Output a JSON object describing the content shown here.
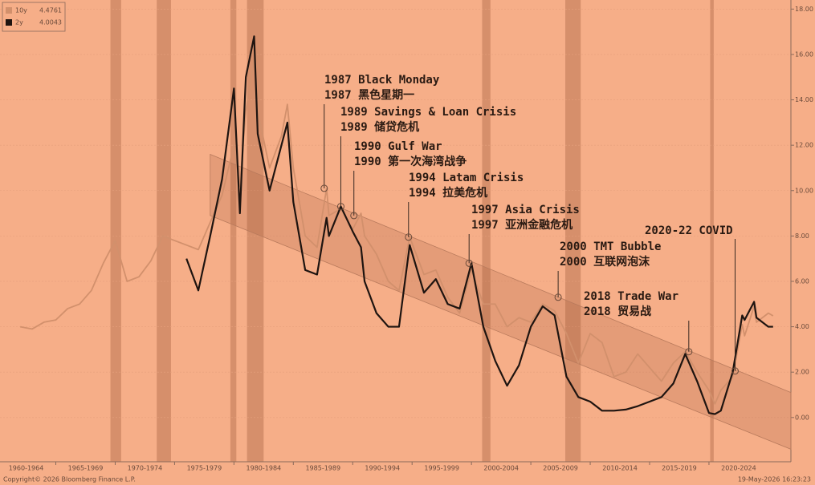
{
  "chart_data": {
    "type": "line",
    "x": [
      1962,
      1963,
      1964,
      1965,
      1966,
      1967,
      1968,
      1969,
      1970,
      1971,
      1972,
      1973,
      1974,
      1975,
      1976,
      1977,
      1978,
      1979,
      1980,
      1980.5,
      1981,
      1981.7,
      1982,
      1983,
      1984,
      1984.5,
      1985,
      1986,
      1987,
      1987.8,
      1988,
      1989,
      1990,
      1990.7,
      1991,
      1992,
      1993,
      1993.9,
      1994.8,
      1996,
      1997,
      1998,
      1999,
      2000,
      2001,
      2002,
      2003,
      2004,
      2005,
      2006,
      2007,
      2008,
      2009,
      2010,
      2011,
      2012,
      2013,
      2014,
      2015,
      2016,
      2017,
      2018,
      2019,
      2020,
      2020.5,
      2021,
      2022,
      2022.8,
      2023,
      2023.8,
      2024,
      2025,
      2025.4
    ],
    "series": [
      {
        "name": "10y",
        "last_value": 4.4761,
        "color": "#d2906c",
        "values": [
          4.0,
          3.9,
          4.2,
          4.3,
          4.8,
          5.0,
          5.6,
          6.8,
          7.8,
          6.0,
          6.2,
          6.9,
          8.0,
          7.8,
          7.6,
          7.4,
          8.6,
          9.8,
          12.0,
          10.2,
          13.5,
          15.8,
          13.5,
          11.0,
          12.4,
          13.8,
          11.0,
          8.0,
          7.5,
          10.1,
          8.9,
          9.2,
          8.3,
          9.0,
          8.0,
          7.2,
          6.0,
          5.6,
          7.95,
          6.3,
          6.5,
          5.3,
          4.6,
          6.5,
          5.0,
          5.0,
          4.0,
          4.4,
          4.2,
          5.0,
          4.7,
          3.7,
          2.4,
          3.7,
          3.3,
          1.8,
          2.0,
          2.8,
          2.2,
          1.6,
          2.4,
          2.9,
          2.0,
          1.2,
          0.6,
          1.2,
          1.8,
          4.1,
          3.6,
          4.9,
          4.2,
          4.6,
          4.48
        ]
      },
      {
        "name": "2y",
        "last_value": 4.0043,
        "color": "#1e1410",
        "values": [
          null,
          null,
          null,
          null,
          null,
          null,
          null,
          null,
          null,
          null,
          null,
          null,
          null,
          null,
          7.0,
          5.6,
          8.0,
          10.5,
          14.5,
          9.0,
          15.0,
          16.8,
          12.5,
          10.0,
          12.0,
          13.0,
          9.5,
          6.5,
          6.3,
          8.8,
          8.0,
          9.3,
          8.2,
          7.5,
          6.0,
          4.6,
          4.0,
          4.0,
          7.6,
          5.5,
          6.1,
          5.0,
          4.8,
          6.8,
          4.0,
          2.5,
          1.4,
          2.3,
          4.0,
          4.9,
          4.5,
          1.8,
          0.9,
          0.7,
          0.3,
          0.3,
          0.35,
          0.5,
          0.7,
          0.9,
          1.5,
          2.8,
          1.6,
          0.2,
          0.15,
          0.3,
          2.0,
          4.5,
          4.3,
          5.1,
          4.4,
          4.0,
          4.0
        ]
      }
    ],
    "xlim": [
      1960.3,
      2026.9
    ],
    "xticks": [
      {
        "value": 1960,
        "label": "1960-1964"
      },
      {
        "value": 1965,
        "label": "1965-1969"
      },
      {
        "value": 1970,
        "label": "1970-1974"
      },
      {
        "value": 1975,
        "label": "1975-1979"
      },
      {
        "value": 1980,
        "label": "1980-1984"
      },
      {
        "value": 1985,
        "label": "1985-1989"
      },
      {
        "value": 1990,
        "label": "1990-1994"
      },
      {
        "value": 1995,
        "label": "1995-1999"
      },
      {
        "value": 2000,
        "label": "2000-2004"
      },
      {
        "value": 2005,
        "label": "2005-2009"
      },
      {
        "value": 2010,
        "label": "2010-2014"
      },
      {
        "value": 2015,
        "label": "2015-2019"
      },
      {
        "value": 2020,
        "label": "2020-2024"
      }
    ],
    "ylim": [
      -1.95,
      18.4
    ],
    "yticks": [
      {
        "value": 0,
        "label": "0.00"
      },
      {
        "value": 2,
        "label": "2.00"
      },
      {
        "value": 4,
        "label": "4.00"
      },
      {
        "value": 6,
        "label": "6.00"
      },
      {
        "value": 8,
        "label": "8.00"
      },
      {
        "value": 10,
        "label": "10.00"
      },
      {
        "value": 12,
        "label": "12.00"
      },
      {
        "value": 14,
        "label": "14.00"
      },
      {
        "value": 16,
        "label": "16.00"
      },
      {
        "value": 18,
        "label": "18.00"
      }
    ],
    "shaded_periods": [
      [
        1969.6,
        1970.5
      ],
      [
        1973.5,
        1974.7
      ],
      [
        1979.7,
        1980.2
      ],
      [
        1981.1,
        1982.5
      ],
      [
        2000.9,
        2001.6
      ],
      [
        2007.9,
        2009.2
      ],
      [
        2020.1,
        2020.4
      ]
    ],
    "channel": {
      "upper": [
        [
          1978,
          11.6
        ],
        [
          2026.9,
          1.1
        ]
      ],
      "lower": [
        [
          1978,
          8.9
        ],
        [
          2026.9,
          -1.4
        ]
      ]
    },
    "annotations": [
      {
        "label": "1987 Black Monday",
        "label_zh": "1987 黑色星期一",
        "x": 1987.6,
        "y": 10.1
      },
      {
        "label": "1989 Savings & Loan Crisis",
        "label_zh": "1989 储贷危机",
        "x": 1989.0,
        "y": 9.3
      },
      {
        "label": "1990 Gulf War",
        "label_zh": "1990 第一次海湾战争",
        "x": 1990.1,
        "y": 8.9
      },
      {
        "label": "1994 Latam Crisis",
        "label_zh": "1994 拉美危机",
        "x": 1994.7,
        "y": 7.95
      },
      {
        "label": "1997 Asia Crisis",
        "label_zh": "1997 亚洲金融危机",
        "x": 1999.8,
        "y": 6.8
      },
      {
        "label": "2000 TMT Bubble",
        "label_zh": "2000 互联网泡沫",
        "x": 2007.3,
        "y": 5.3
      },
      {
        "label": "2018 Trade War",
        "label_zh": "2018 贸易战",
        "x": 2018.3,
        "y": 2.9
      },
      {
        "label": "2020-22 COVID",
        "x": 2022.2,
        "y": 2.05
      }
    ],
    "copyright": "Copyright© 2026 Bloomberg Finance L.P.",
    "timestamp": "19-May-2026 16:23:23"
  }
}
